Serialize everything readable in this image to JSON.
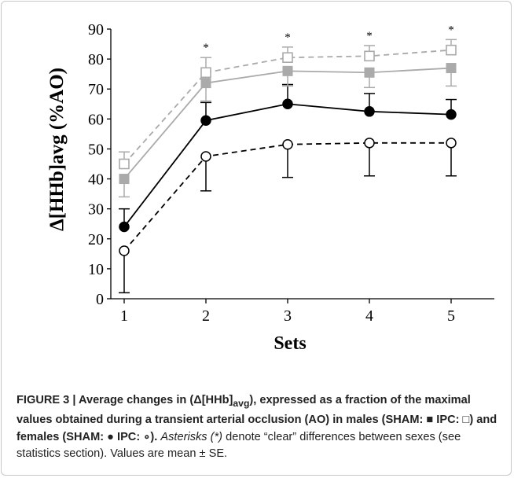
{
  "chart_data": {
    "type": "line",
    "title": "",
    "xlabel": "Sets",
    "ylabel": "Δ[HHb]avg (%AO)",
    "categories": [
      "1",
      "2",
      "3",
      "4",
      "5"
    ],
    "ylim": [
      0,
      90
    ],
    "yticks": [
      "0",
      "10",
      "20",
      "30",
      "40",
      "50",
      "60",
      "70",
      "80",
      "90"
    ],
    "grid": false,
    "annotations": [
      "*",
      "*",
      "*",
      "*"
    ],
    "annotation_sets": [
      "2",
      "3",
      "4",
      "5"
    ],
    "series": [
      {
        "name": "",
        "color": "#aaaaaa",
        "marker": "square-open",
        "line": "dashed",
        "values": [
          45,
          75.5,
          80.5,
          81,
          83
        ],
        "se": [
          4,
          5,
          3.5,
          3.5,
          3.5
        ]
      },
      {
        "name": "",
        "color": "#aaaaaa",
        "marker": "square-filled",
        "line": "solid",
        "values": [
          40,
          72,
          76,
          75.5,
          77
        ],
        "se": [
          6,
          6,
          5,
          5,
          6
        ]
      },
      {
        "name": "",
        "color": "#000000",
        "marker": "circle-filled",
        "line": "solid",
        "values": [
          24,
          59.5,
          65,
          62.5,
          61.5
        ],
        "se": [
          6,
          6,
          6.5,
          6,
          5
        ]
      },
      {
        "name": "",
        "color": "#000000",
        "marker": "circle-open",
        "line": "dashed",
        "values": [
          16,
          47.5,
          51.5,
          52,
          52
        ],
        "se": [
          14,
          11.5,
          11,
          11,
          11
        ]
      }
    ]
  },
  "caption": {
    "bold_1": "FIGURE 3 | Average changes in (Δ[HHb]",
    "bold_sub": "avg",
    "bold_2": "), expressed as a fraction of the maximal values obtained during a transient arterial occlusion (AO) in males (SHAM: ■ IPC: □) and females (SHAM: ● IPC: ∘).",
    "italic": "Asterisks (*)",
    "normal": "denote “clear” differences between sexes (see statistics section). Values are mean ± SE."
  }
}
